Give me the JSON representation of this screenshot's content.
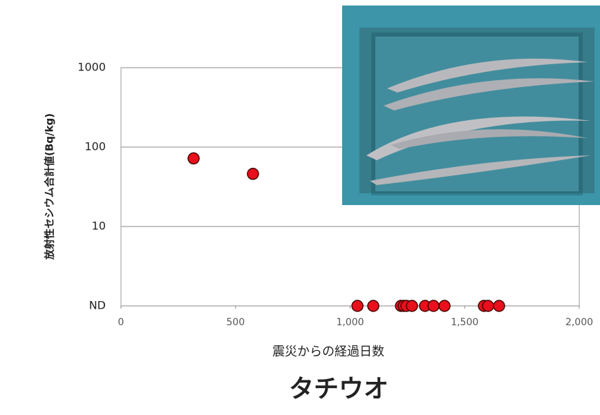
{
  "chart_data": {
    "type": "scatter",
    "title": "タチウオ",
    "x_label": "震災からの経過日数",
    "y_label": "放射性セシウム合計値(Bq/kg)",
    "x": [
      317,
      576,
      1032,
      1101,
      1222,
      1234,
      1246,
      1270,
      1327,
      1364,
      1412,
      1584,
      1602,
      1650
    ],
    "values": [
      72,
      46,
      1,
      1,
      1,
      1,
      1,
      1,
      1,
      1,
      1,
      1,
      1,
      1
    ],
    "color": "#e8101c",
    "xlim": [
      0,
      2000
    ],
    "xticks": [
      0,
      500,
      {
        "value": 1000,
        "label": "1,000"
      },
      {
        "value": 1500,
        "label": "1,500"
      },
      {
        "value": 2000,
        "label": "2,000"
      }
    ],
    "ylim": [
      1,
      1000
    ],
    "yticks": [
      {
        "value": 1,
        "label": "ND"
      },
      10,
      100,
      1000
    ],
    "y_scale": "log",
    "grid": true
  }
}
